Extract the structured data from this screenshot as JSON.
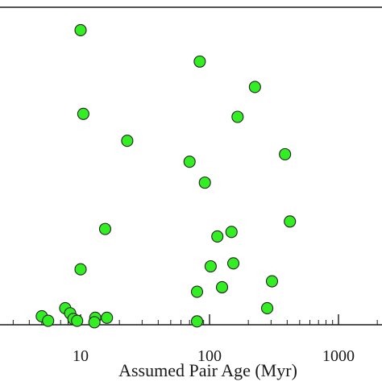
{
  "chart_data": {
    "type": "scatter",
    "xscale": "log",
    "xlabel": "Assumed Pair Age (Myr)",
    "ylabel": "",
    "title": "",
    "xlim": [
      2.7,
      2600
    ],
    "ylim": [
      0,
      100
    ],
    "grid": false,
    "legend": "none",
    "x_ticks": [
      10,
      100,
      1000
    ],
    "x_tick_labels": [
      "10",
      "100",
      "1000"
    ],
    "marker_color": "#33ee22",
    "marker_edge": "#222222",
    "points": [
      {
        "x": 10,
        "y": 98
      },
      {
        "x": 84,
        "y": 87.5
      },
      {
        "x": 225,
        "y": 79
      },
      {
        "x": 10.5,
        "y": 70
      },
      {
        "x": 165,
        "y": 69
      },
      {
        "x": 23,
        "y": 61
      },
      {
        "x": 385,
        "y": 56.5
      },
      {
        "x": 70,
        "y": 54
      },
      {
        "x": 92,
        "y": 47
      },
      {
        "x": 420,
        "y": 34
      },
      {
        "x": 15.5,
        "y": 31.5
      },
      {
        "x": 148,
        "y": 30.5
      },
      {
        "x": 115,
        "y": 29
      },
      {
        "x": 10,
        "y": 18
      },
      {
        "x": 102,
        "y": 19
      },
      {
        "x": 153,
        "y": 20
      },
      {
        "x": 305,
        "y": 14
      },
      {
        "x": 125,
        "y": 12
      },
      {
        "x": 80,
        "y": 10.5
      },
      {
        "x": 7.6,
        "y": 5
      },
      {
        "x": 280,
        "y": 5
      },
      {
        "x": 8.3,
        "y": 3.3
      },
      {
        "x": 5,
        "y": 2.3
      },
      {
        "x": 13,
        "y": 1.8
      },
      {
        "x": 16,
        "y": 1.8
      },
      {
        "x": 8.8,
        "y": 1.4
      },
      {
        "x": 5.6,
        "y": 0.8
      },
      {
        "x": 9.4,
        "y": 0.8
      },
      {
        "x": 12.8,
        "y": 0.3
      },
      {
        "x": 80,
        "y": 0.6
      }
    ]
  }
}
